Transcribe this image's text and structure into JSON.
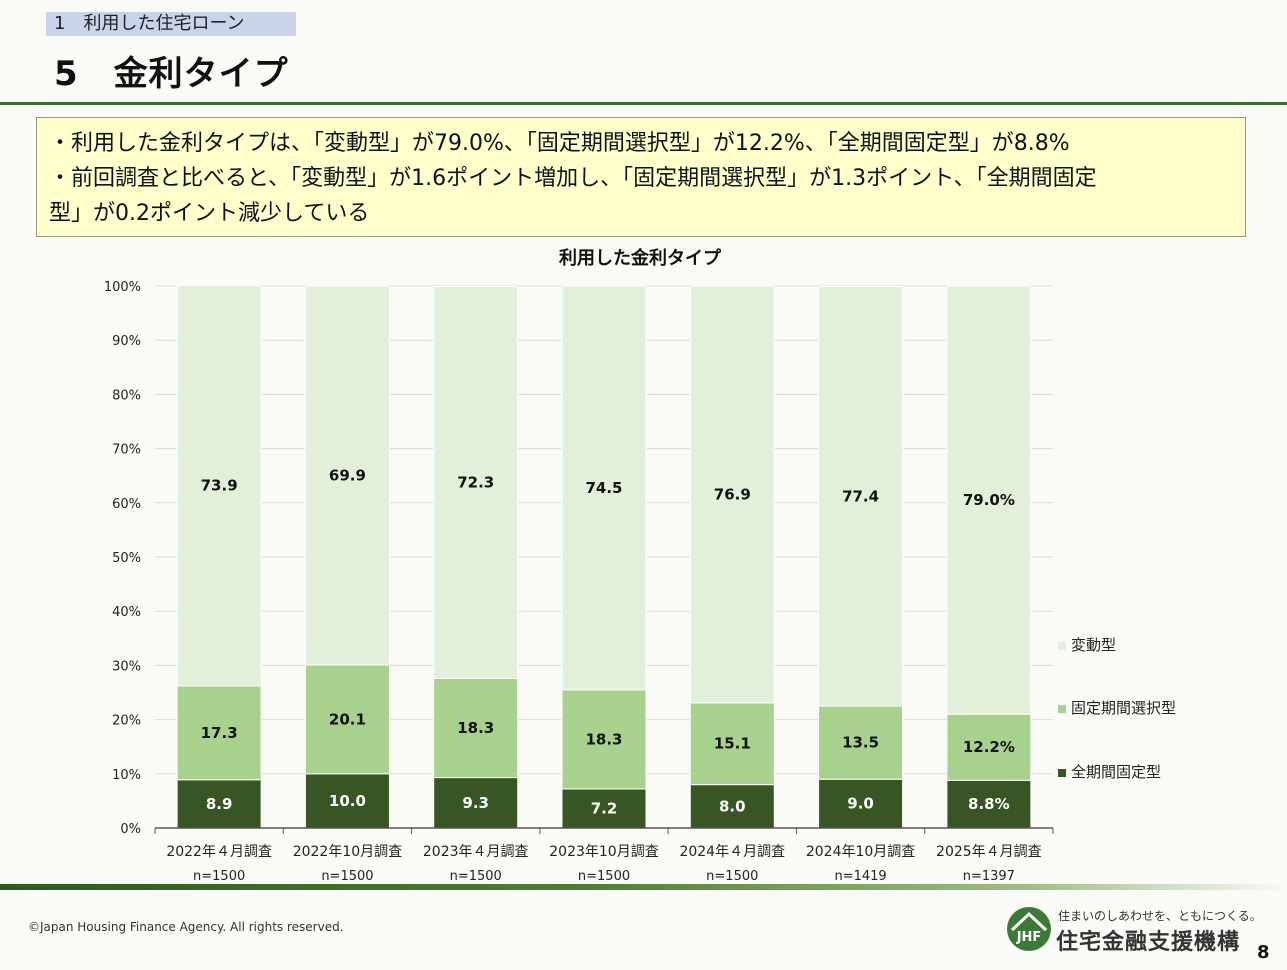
{
  "header": {
    "breadcrumb": "1　利用した住宅ローン",
    "title": "5　金利タイプ"
  },
  "summary": {
    "line1": "・利用した金利タイプは、「変動型」が79.0%、「固定期間選択型」が12.2%、「全期間固定型」が8.8%",
    "line2": "・前回調査と比べると、「変動型」が1.6ポイント増加し、「固定期間選択型」が1.3ポイント、「全期間固定",
    "line3": "型」が0.2ポイント減少している"
  },
  "chart_data": {
    "type": "bar",
    "stacked": true,
    "title": "利用した金利タイプ",
    "categories": [
      "2022年４月調査",
      "2022年10月調査",
      "2023年４月調査",
      "2023年10月調査",
      "2024年４月調査",
      "2024年10月調査",
      "2025年４月調査"
    ],
    "sample_sizes": [
      "n=1500",
      "n=1500",
      "n=1500",
      "n=1500",
      "n=1500",
      "n=1419",
      "n=1397"
    ],
    "series": [
      {
        "name": "全期間固定型",
        "color": "#375623",
        "values": [
          8.9,
          10.0,
          9.3,
          7.2,
          8.0,
          9.0,
          8.8
        ],
        "labels": [
          "8.9",
          "10.0",
          "9.3",
          "7.2",
          "8.0",
          "9.0",
          "8.8%"
        ]
      },
      {
        "name": "固定期間選択型",
        "color": "#a9d18e",
        "values": [
          17.3,
          20.1,
          18.3,
          18.3,
          15.1,
          13.5,
          12.2
        ],
        "labels": [
          "17.3",
          "20.1",
          "18.3",
          "18.3",
          "15.1",
          "13.5",
          "12.2%"
        ]
      },
      {
        "name": "変動型",
        "color": "#e2efd9",
        "values": [
          73.9,
          69.9,
          72.3,
          74.5,
          76.9,
          77.4,
          79.0
        ],
        "labels": [
          "73.9",
          "69.9",
          "72.3",
          "74.5",
          "76.9",
          "77.4",
          "79.0%"
        ]
      }
    ],
    "yticks": [
      "0%",
      "10%",
      "20%",
      "30%",
      "40%",
      "50%",
      "60%",
      "70%",
      "80%",
      "90%",
      "100%"
    ],
    "ylim": [
      0,
      100
    ],
    "grid": true,
    "legend": [
      "変動型",
      "固定期間選択型",
      "全期間固定型"
    ],
    "legend_position": "right"
  },
  "footer": {
    "copyright": "©Japan Housing Finance Agency. All rights reserved.",
    "tagline": "住まいのしあわせを、ともにつくる。",
    "org_name": "住宅金融支援機構",
    "logo_text": "JHF",
    "page_number": "8"
  }
}
